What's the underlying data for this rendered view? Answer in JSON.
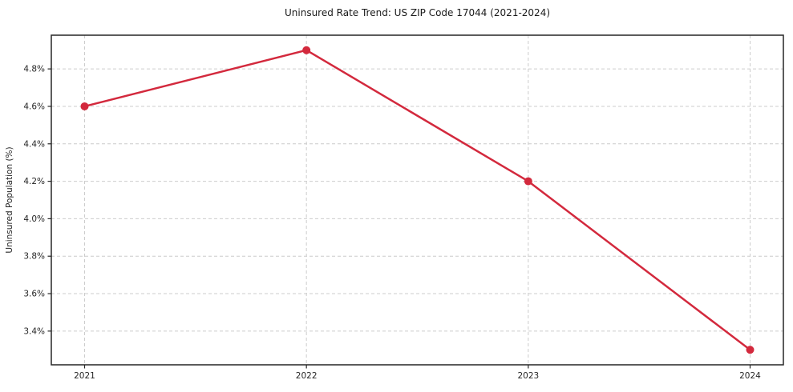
{
  "chart_data": {
    "type": "line",
    "title": "Uninsured Rate Trend: US ZIP Code 17044 (2021-2024)",
    "xlabel": "",
    "ylabel": "Uninsured Population (%)",
    "x": [
      2021,
      2022,
      2023,
      2024
    ],
    "values": [
      4.6,
      4.9,
      4.2,
      3.3
    ],
    "xtick_labels": [
      "2021",
      "2022",
      "2023",
      "2024"
    ],
    "yticks": [
      3.4,
      3.6,
      3.8,
      4.0,
      4.2,
      4.4,
      4.6,
      4.8
    ],
    "ytick_labels": [
      "3.4%",
      "3.6%",
      "3.8%",
      "4.0%",
      "4.2%",
      "4.4%",
      "4.6%",
      "4.8%"
    ],
    "xlim": [
      2020.85,
      2024.15
    ],
    "ylim": [
      3.22,
      4.98
    ],
    "grid": true,
    "grid_style": "dashed",
    "legend": "none",
    "colors": {
      "line": "#d3293d",
      "marker": "#d3293d",
      "grid": "#cccccc",
      "axis": "#262626",
      "tick_label": "#262626",
      "title": "#1a1a1a",
      "background": "#ffffff"
    }
  }
}
